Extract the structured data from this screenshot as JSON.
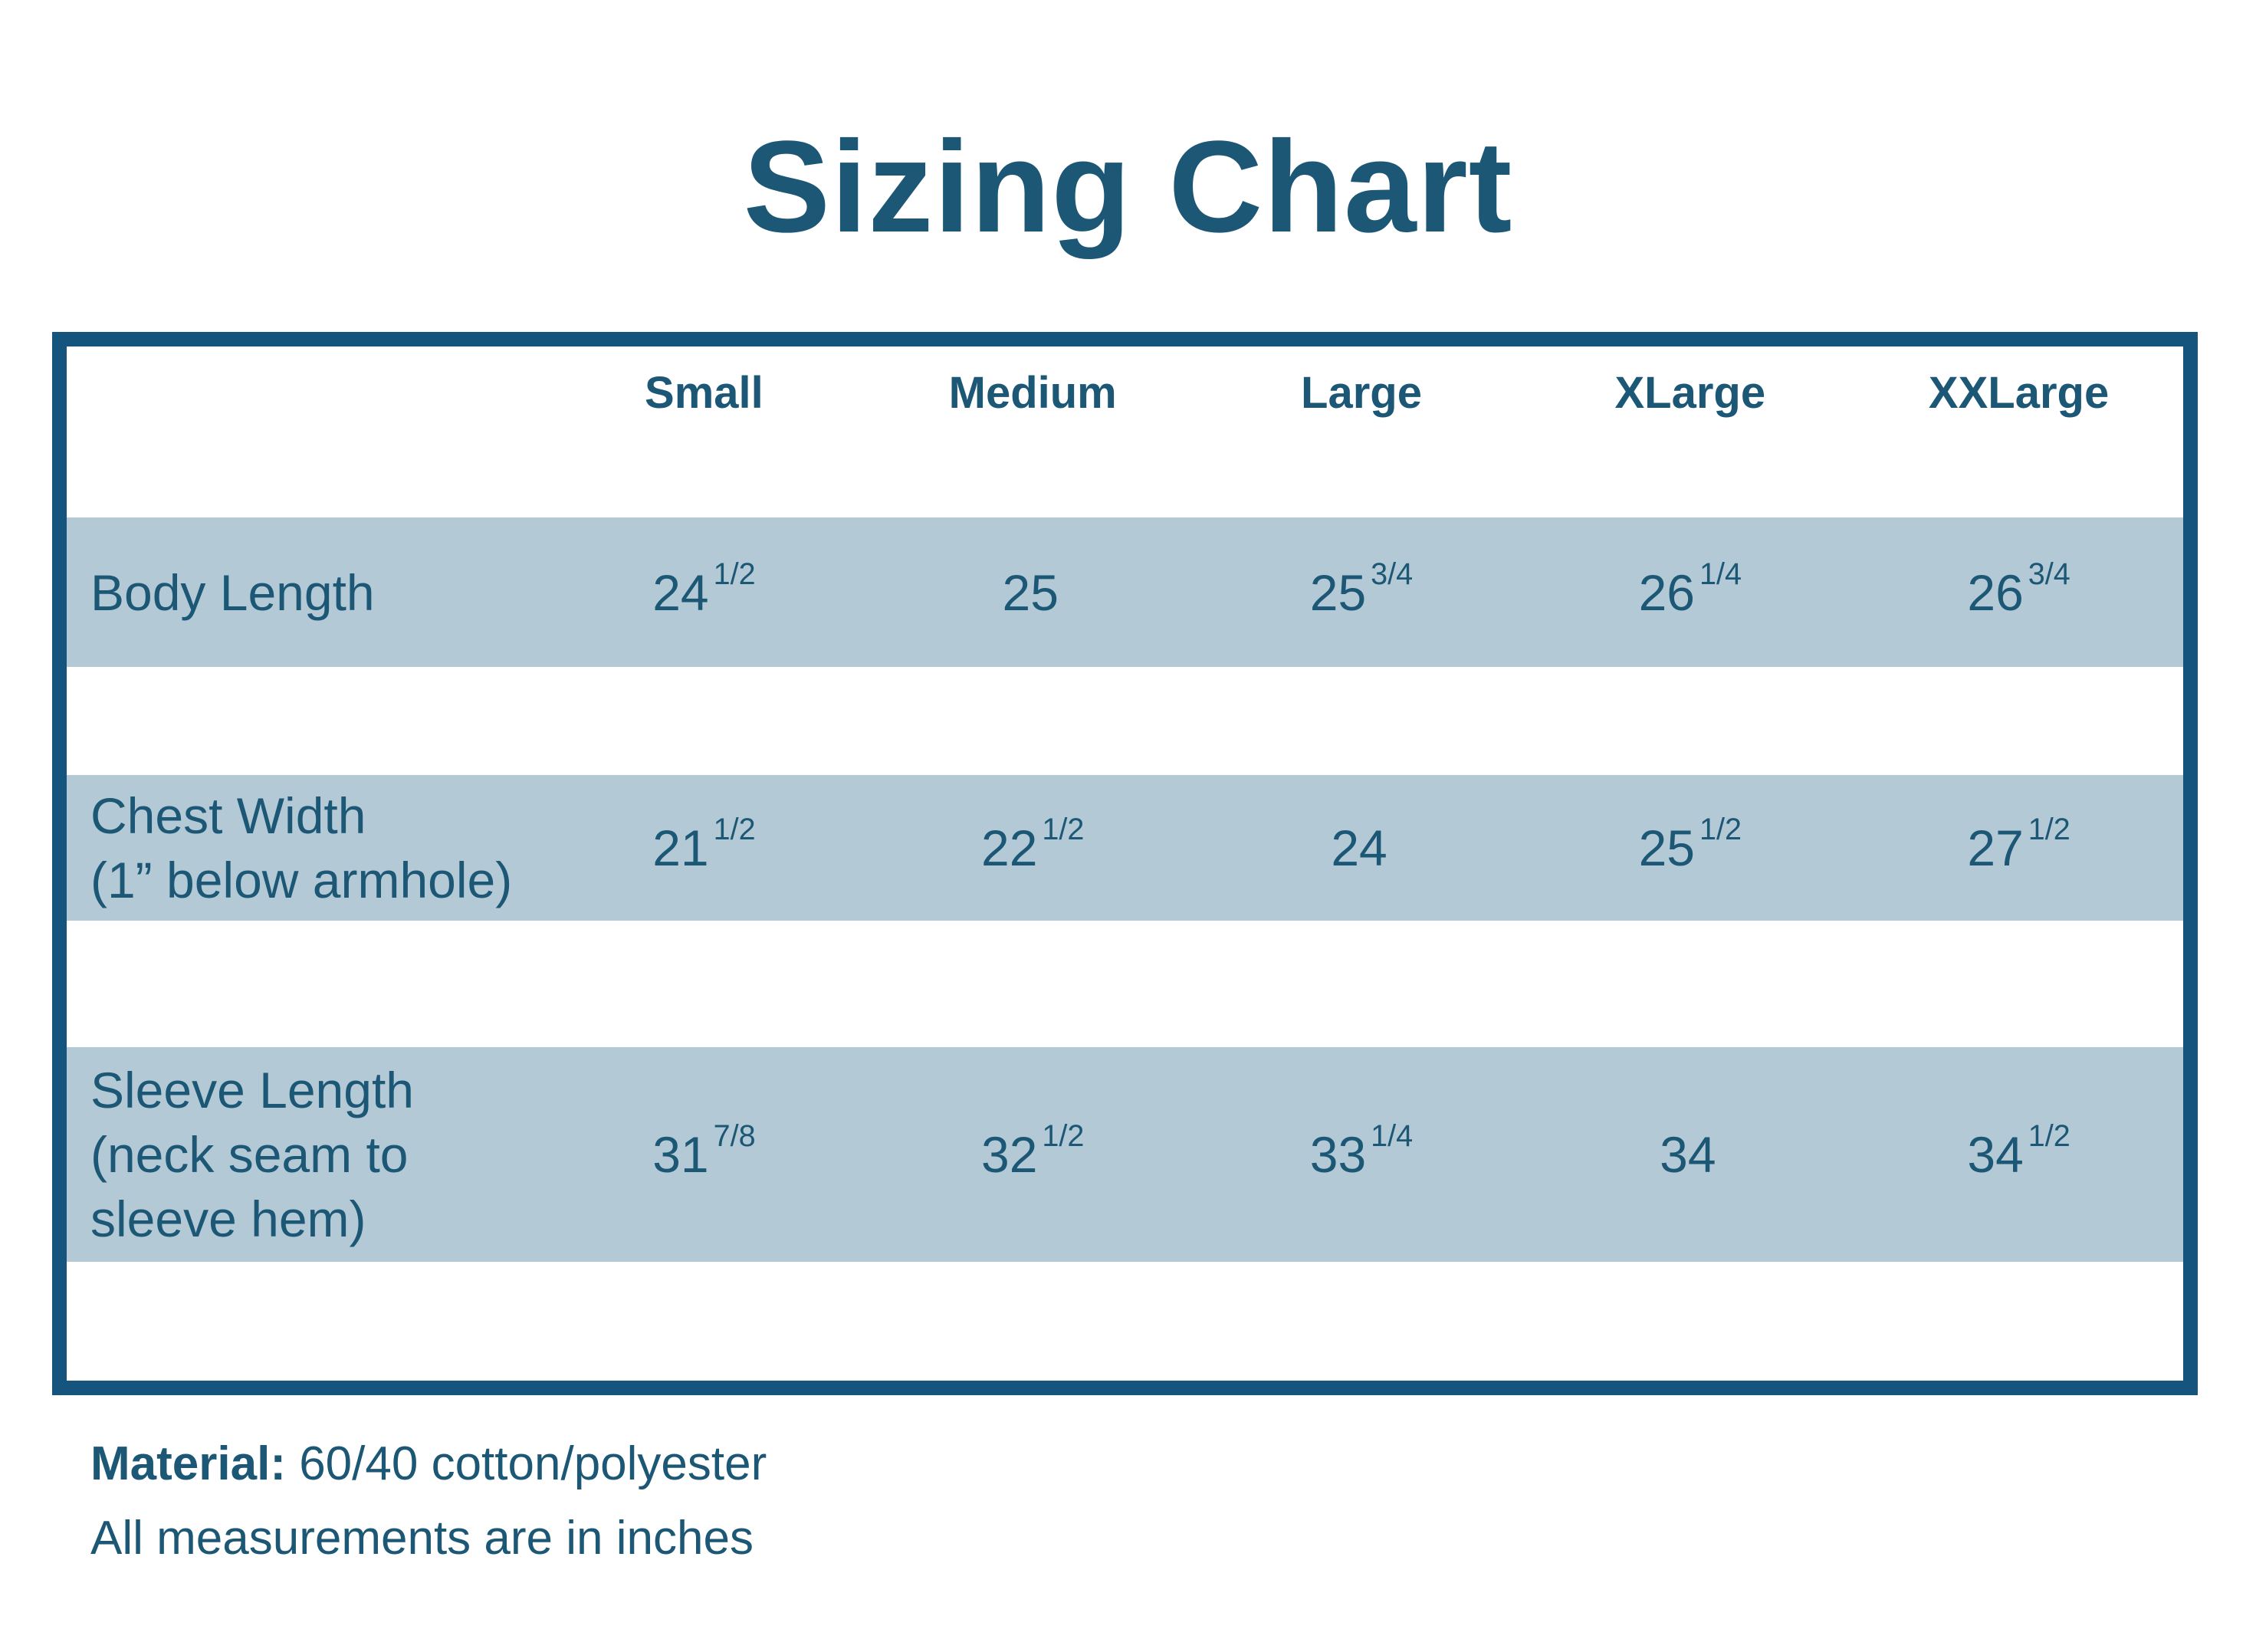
{
  "title": "Sizing Chart",
  "colors": {
    "ink": "#1c5775",
    "border": "#15547c",
    "stripe": "#b3c9d5",
    "background": "#ffffff"
  },
  "table": {
    "size_headers": [
      "Small",
      "Medium",
      "Large",
      "XLarge",
      "XXLarge"
    ],
    "rows": [
      {
        "label_lines": [
          "Body Length"
        ],
        "cells": [
          {
            "n": "24",
            "f": "1/2"
          },
          {
            "n": "25",
            "f": ""
          },
          {
            "n": "25",
            "f": "3/4"
          },
          {
            "n": "26",
            "f": "1/4"
          },
          {
            "n": "26",
            "f": "3/4"
          }
        ]
      },
      {
        "label_lines": [
          "Chest Width",
          "(1” below armhole)"
        ],
        "cells": [
          {
            "n": "21",
            "f": "1/2"
          },
          {
            "n": "22",
            "f": "1/2"
          },
          {
            "n": "24",
            "f": ""
          },
          {
            "n": "25",
            "f": "1/2"
          },
          {
            "n": "27",
            "f": "1/2"
          }
        ]
      },
      {
        "label_lines": [
          "Sleeve Length",
          "(neck seam to",
          "sleeve hem)"
        ],
        "cells": [
          {
            "n": "31",
            "f": "7/8"
          },
          {
            "n": "32",
            "f": "1/2"
          },
          {
            "n": "33",
            "f": "1/4"
          },
          {
            "n": "34",
            "f": ""
          },
          {
            "n": "34",
            "f": "1/2"
          }
        ]
      }
    ]
  },
  "footer": {
    "material_label": "Material:",
    "material_value": " 60/40 cotton/polyester",
    "note": "All measurements are in inches"
  }
}
